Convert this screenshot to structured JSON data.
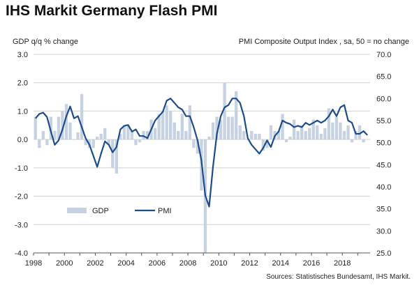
{
  "title": "IHS Markit Germany Flash PMI",
  "left_axis_label": "GDP q/q % change",
  "right_axis_label": "PMI Composite Output Index , sa, 50 = no change",
  "source": "Sources: Statistisches Bundesamt, IHS Markit.",
  "colors": {
    "gdp": "#c6d2e2",
    "pmi": "#1c4c8c",
    "grid": "#d0d0d0"
  },
  "chart_data": {
    "type": "bar+line",
    "left_axis": {
      "label": "GDP q/q % change",
      "ylim": [
        -4.0,
        3.0
      ],
      "ticks": [
        "3.0",
        "2.0",
        "1.0",
        "0.0",
        "-1.0",
        "-2.0",
        "-3.0",
        "-4.0"
      ]
    },
    "right_axis": {
      "label": "PMI Composite Output Index , sa, 50 = no change",
      "ylim": [
        25.0,
        70.0
      ],
      "ticks": [
        "70.0",
        "65.0",
        "60.0",
        "55.0",
        "50.0",
        "45.0",
        "40.0",
        "35.0",
        "30.0",
        "25.0"
      ]
    },
    "x_ticks": [
      "1998",
      "2000",
      "2002",
      "2004",
      "2006",
      "2008",
      "2010",
      "2012",
      "2014",
      "2016",
      "2018"
    ],
    "x_range": [
      1998.0,
      2019.8
    ],
    "grid": true,
    "legend": {
      "position": "bottom-left",
      "entries": [
        "GDP",
        "PMI"
      ]
    },
    "series": [
      {
        "name": "GDP",
        "kind": "bar",
        "axis": "left",
        "x": [
          1998.0,
          1998.25,
          1998.5,
          1998.75,
          1999.0,
          1999.25,
          1999.5,
          1999.75,
          2000.0,
          2000.25,
          2000.5,
          2000.75,
          2001.0,
          2001.25,
          2001.5,
          2001.75,
          2002.0,
          2002.25,
          2002.5,
          2002.75,
          2003.0,
          2003.25,
          2003.5,
          2003.75,
          2004.0,
          2004.25,
          2004.5,
          2004.75,
          2005.0,
          2005.25,
          2005.5,
          2005.75,
          2006.0,
          2006.25,
          2006.5,
          2006.75,
          2007.0,
          2007.25,
          2007.5,
          2007.75,
          2008.0,
          2008.25,
          2008.5,
          2008.75,
          2009.0,
          2009.25,
          2009.5,
          2009.75,
          2010.0,
          2010.25,
          2010.5,
          2010.75,
          2011.0,
          2011.25,
          2011.5,
          2011.75,
          2012.0,
          2012.25,
          2012.5,
          2012.75,
          2013.0,
          2013.25,
          2013.5,
          2013.75,
          2014.0,
          2014.25,
          2014.5,
          2014.75,
          2015.0,
          2015.25,
          2015.5,
          2015.75,
          2016.0,
          2016.25,
          2016.5,
          2016.75,
          2017.0,
          2017.25,
          2017.5,
          2017.75,
          2018.0,
          2018.25,
          2018.5,
          2018.75,
          2019.0,
          2019.25
        ],
        "values": [
          0.8,
          -0.3,
          0.3,
          -0.2,
          0.8,
          0.3,
          0.8,
          1.0,
          1.25,
          0.6,
          0.0,
          0.25,
          1.6,
          -0.2,
          -0.3,
          -0.3,
          0.1,
          0.2,
          0.4,
          -0.2,
          -1.0,
          -1.2,
          0.2,
          0.5,
          0.5,
          0.3,
          -0.2,
          -0.1,
          0.3,
          0.3,
          0.7,
          0.4,
          0.9,
          1.0,
          1.2,
          1.0,
          0.6,
          0.3,
          0.9,
          0.3,
          1.2,
          -0.3,
          -0.5,
          -1.8,
          -4.0,
          0.1,
          0.6,
          0.8,
          0.7,
          2.0,
          0.8,
          0.8,
          1.7,
          0.5,
          0.3,
          0.0,
          0.3,
          0.2,
          0.2,
          -0.4,
          -0.3,
          0.5,
          0.3,
          0.3,
          0.9,
          -0.1,
          0.1,
          0.7,
          0.3,
          0.5,
          0.3,
          0.4,
          0.7,
          0.5,
          0.2,
          0.4,
          1.1,
          0.6,
          0.8,
          0.6,
          0.3,
          0.5,
          -0.1,
          0.3,
          0.5,
          -0.1
        ]
      },
      {
        "name": "PMI",
        "kind": "line",
        "axis": "right",
        "x": [
          1998.0,
          1998.25,
          1998.5,
          1998.75,
          1999.0,
          1999.25,
          1999.5,
          1999.75,
          2000.0,
          2000.25,
          2000.5,
          2000.75,
          2001.0,
          2001.25,
          2001.5,
          2001.75,
          2002.0,
          2002.25,
          2002.5,
          2002.75,
          2003.0,
          2003.25,
          2003.5,
          2003.75,
          2004.0,
          2004.25,
          2004.5,
          2004.75,
          2005.0,
          2005.25,
          2005.5,
          2005.75,
          2006.0,
          2006.25,
          2006.5,
          2006.75,
          2007.0,
          2007.25,
          2007.5,
          2007.75,
          2008.0,
          2008.25,
          2008.5,
          2008.75,
          2009.0,
          2009.25,
          2009.5,
          2009.75,
          2010.0,
          2010.25,
          2010.5,
          2010.75,
          2011.0,
          2011.25,
          2011.5,
          2011.75,
          2012.0,
          2012.25,
          2012.5,
          2012.75,
          2013.0,
          2013.25,
          2013.5,
          2013.75,
          2014.0,
          2014.25,
          2014.5,
          2014.75,
          2015.0,
          2015.25,
          2015.5,
          2015.75,
          2016.0,
          2016.25,
          2016.5,
          2016.75,
          2017.0,
          2017.25,
          2017.5,
          2017.75,
          2018.0,
          2018.25,
          2018.5,
          2018.75,
          2019.0,
          2019.25,
          2019.5
        ],
        "values": [
          55.5,
          56.5,
          56.8,
          55.8,
          52.5,
          49.5,
          50.5,
          53.0,
          56.0,
          58.2,
          55.5,
          56.0,
          53.5,
          51.0,
          49.5,
          47.0,
          44.5,
          47.5,
          50.3,
          49.5,
          47.8,
          49.0,
          53.0,
          53.8,
          54.0,
          52.5,
          53.0,
          51.5,
          51.5,
          51.0,
          53.0,
          55.0,
          56.0,
          57.0,
          59.5,
          60.0,
          59.0,
          58.0,
          57.5,
          56.0,
          56.0,
          53.5,
          50.5,
          46.0,
          38.0,
          35.5,
          44.5,
          52.0,
          56.0,
          58.0,
          58.5,
          60.0,
          60.0,
          59.0,
          56.0,
          51.0,
          49.5,
          48.5,
          47.5,
          48.8,
          50.5,
          49.0,
          51.5,
          52.5,
          55.0,
          54.5,
          54.2,
          53.5,
          53.8,
          53.5,
          54.5,
          54.0,
          54.5,
          55.0,
          54.5,
          55.0,
          56.0,
          57.5,
          56.0,
          58.0,
          58.5,
          55.0,
          54.5,
          52.0,
          52.0,
          52.6,
          51.7
        ]
      }
    ]
  }
}
